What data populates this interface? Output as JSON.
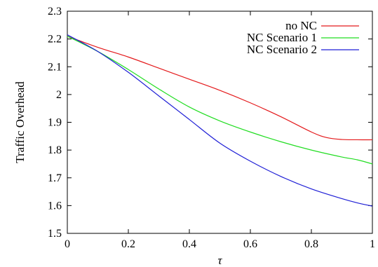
{
  "chart_data": {
    "type": "line",
    "title": "",
    "xlabel": "τ",
    "ylabel": "Traffic Overhead",
    "xlim": [
      0,
      1
    ],
    "ylim": [
      1.5,
      2.3
    ],
    "xticks": [
      "0",
      "0.2",
      "0.4",
      "0.6",
      "0.8",
      "1"
    ],
    "xtick_values": [
      0,
      0.2,
      0.4,
      0.6,
      0.8,
      1
    ],
    "yticks": [
      "1.5",
      "1.6",
      "1.7",
      "1.8",
      "1.9",
      "2",
      "2.1",
      "2.2",
      "2.3"
    ],
    "ytick_values": [
      1.5,
      1.6,
      1.7,
      1.8,
      1.9,
      2.0,
      2.1,
      2.2,
      2.3
    ],
    "grid": false,
    "legend_position": "top-right",
    "series": [
      {
        "name": "no NC",
        "color": "#e41a1c",
        "x": [
          0,
          0.1,
          0.2,
          0.3,
          0.4,
          0.5,
          0.6,
          0.7,
          0.8,
          0.85,
          0.9,
          0.95,
          1.0
        ],
        "y": [
          2.21,
          2.17,
          2.135,
          2.095,
          2.055,
          2.015,
          1.97,
          1.92,
          1.865,
          1.845,
          1.838,
          1.837,
          1.837
        ]
      },
      {
        "name": "NC Scenario 1",
        "color": "#22dd22",
        "x": [
          0,
          0.1,
          0.2,
          0.3,
          0.4,
          0.5,
          0.6,
          0.7,
          0.8,
          0.9,
          0.95,
          1.0
        ],
        "y": [
          2.21,
          2.155,
          2.09,
          2.02,
          1.955,
          1.905,
          1.865,
          1.83,
          1.8,
          1.775,
          1.765,
          1.75
        ]
      },
      {
        "name": "NC Scenario 2",
        "color": "#1f1fd6",
        "x": [
          0,
          0.1,
          0.2,
          0.3,
          0.4,
          0.5,
          0.6,
          0.7,
          0.8,
          0.9,
          0.95,
          1.0
        ],
        "y": [
          2.215,
          2.155,
          2.08,
          1.995,
          1.91,
          1.825,
          1.76,
          1.705,
          1.66,
          1.625,
          1.61,
          1.598
        ]
      }
    ]
  }
}
